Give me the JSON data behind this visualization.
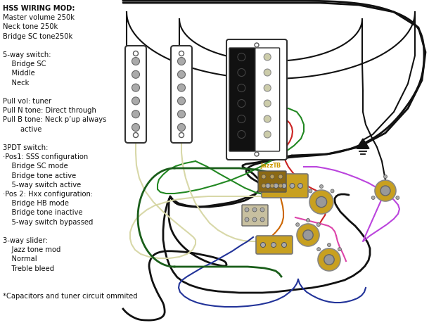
{
  "background_color": "#ffffff",
  "text_lines": [
    [
      "HSS WIRING MOD:",
      true
    ],
    [
      "Master volume 250k",
      false
    ],
    [
      "Neck tone 250k",
      false
    ],
    [
      "Bridge SC tone250k",
      false
    ],
    [
      "",
      false
    ],
    [
      "5-way switch:",
      false
    ],
    [
      "    Bridge SC",
      false
    ],
    [
      "    Middle",
      false
    ],
    [
      "    Neck",
      false
    ],
    [
      "",
      false
    ],
    [
      "Pull vol: tuner",
      false
    ],
    [
      "Pull N tone: Direct through",
      false
    ],
    [
      "Pull B tone: Neck p’up always",
      false
    ],
    [
      "        active",
      false
    ],
    [
      "",
      false
    ],
    [
      "3PDT switch:",
      false
    ],
    [
      "·Pos1: SSS configuration",
      false
    ],
    [
      "    Bridge SC mode",
      false
    ],
    [
      "    Bridge tone active",
      false
    ],
    [
      "    5-way switch active",
      false
    ],
    [
      "·Pos 2: Hxx configuration:",
      false
    ],
    [
      "    Bridge HB mode",
      false
    ],
    [
      "    Bridge tone inactive",
      false
    ],
    [
      "    5-way switch bypassed",
      false
    ],
    [
      "",
      false
    ],
    [
      "3-way slider:",
      false
    ],
    [
      "    Jazz tone mod",
      false
    ],
    [
      "    Normal",
      false
    ],
    [
      "    Treble bleed",
      false
    ],
    [
      "",
      false
    ],
    [
      "",
      false
    ],
    [
      "*Capacitors and tuner circuit ommited",
      false
    ]
  ],
  "wire_colors": {
    "black": "#111111",
    "green": "#228822",
    "dark_green": "#1a5e1a",
    "yellow_green": "#c8c870",
    "cream": "#d8d8a8",
    "red": "#cc2222",
    "white": "#ffffff",
    "purple": "#bb44dd",
    "pink": "#dd44aa",
    "blue": "#2233bb",
    "navy": "#223399",
    "orange": "#cc6600",
    "gray": "#888888",
    "gold": "#c8a020"
  },
  "body_outline": {
    "color": "#111111",
    "lw": 2.0
  }
}
